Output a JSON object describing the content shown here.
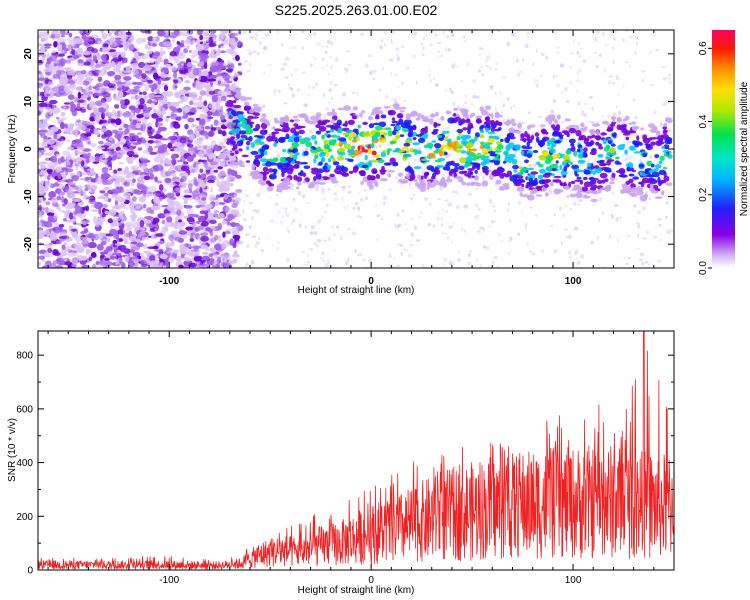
{
  "figure_title": "S225.2025.263.01.00.E02",
  "chart_data": [
    {
      "type": "heatmap",
      "title": "S225.2025.263.01.00.E02",
      "xlabel": "Height of straight line (km)",
      "ylabel": "Frequency (Hz)",
      "xlim": [
        -165,
        150
      ],
      "ylim": [
        -25,
        25
      ],
      "x_ticks": [
        -100,
        0,
        100
      ],
      "x_tick_labels": [
        "-100",
        "0",
        "100"
      ],
      "y_ticks": [
        -20,
        -10,
        0,
        10,
        20
      ],
      "y_tick_labels": [
        "-20",
        "-10",
        "0",
        "10",
        "20"
      ],
      "colorbar": {
        "label": "Normalized spectral amplitude",
        "range": [
          0,
          0.65
        ],
        "ticks": [
          0.0,
          0.2,
          0.4,
          0.6
        ],
        "tick_labels": [
          "0.0",
          "0.2",
          "0.4",
          "0.6"
        ],
        "colors": [
          "#ffffff",
          "#c9a3f5",
          "#7a00e0",
          "#1a1aff",
          "#00c8ff",
          "#00e070",
          "#a8e600",
          "#ffe000",
          "#ff8c00",
          "#ff0000",
          "#ff0066"
        ]
      },
      "noise_region_x": [
        -165,
        -65
      ],
      "signal_band": {
        "x": [
          -70,
          -60,
          -50,
          -40,
          -30,
          -20,
          -10,
          0,
          10,
          20,
          30,
          40,
          50,
          60,
          70,
          80,
          90,
          100,
          110,
          120,
          130,
          140,
          148
        ],
        "center_hz": [
          5,
          3,
          -2,
          0,
          -1,
          0,
          1,
          0,
          2,
          0,
          -1,
          1,
          0,
          1,
          -2,
          -3,
          -1,
          -2,
          -3,
          0,
          -2,
          -3,
          -1
        ],
        "peak_amplitude": [
          0.3,
          0.35,
          0.3,
          0.35,
          0.4,
          0.5,
          0.55,
          0.65,
          0.5,
          0.45,
          0.45,
          0.55,
          0.5,
          0.4,
          0.35,
          0.4,
          0.45,
          0.35,
          0.3,
          0.35,
          0.35,
          0.3,
          0.3
        ]
      }
    },
    {
      "type": "line",
      "xlabel": "Height of straight line (km)",
      "ylabel": "SNR (10 * v/v)",
      "xlim": [
        -165,
        150
      ],
      "ylim": [
        0,
        890
      ],
      "x_ticks": [
        -100,
        0,
        100
      ],
      "x_tick_labels": [
        "-100",
        "0",
        "100"
      ],
      "y_ticks": [
        0,
        200,
        400,
        600,
        800
      ],
      "y_tick_labels": [
        "0",
        "200",
        "400",
        "600",
        "800"
      ],
      "series": [
        {
          "name": "SNR",
          "color": "#ee2222",
          "envelope_x": [
            -165,
            -140,
            -100,
            -75,
            -65,
            -55,
            -45,
            -35,
            -25,
            -15,
            -5,
            5,
            15,
            25,
            35,
            45,
            55,
            65,
            75,
            85,
            95,
            105,
            115,
            125,
            135,
            145,
            150
          ],
          "envelope_mean": [
            20,
            20,
            20,
            18,
            25,
            60,
            75,
            70,
            95,
            105,
            130,
            150,
            165,
            190,
            210,
            225,
            235,
            245,
            255,
            260,
            260,
            265,
            270,
            265,
            255,
            250,
            255
          ],
          "envelope_max": [
            45,
            45,
            55,
            35,
            60,
            120,
            150,
            175,
            230,
            260,
            310,
            340,
            380,
            420,
            450,
            460,
            470,
            480,
            500,
            560,
            580,
            600,
            640,
            600,
            890,
            650,
            530
          ]
        }
      ]
    }
  ]
}
